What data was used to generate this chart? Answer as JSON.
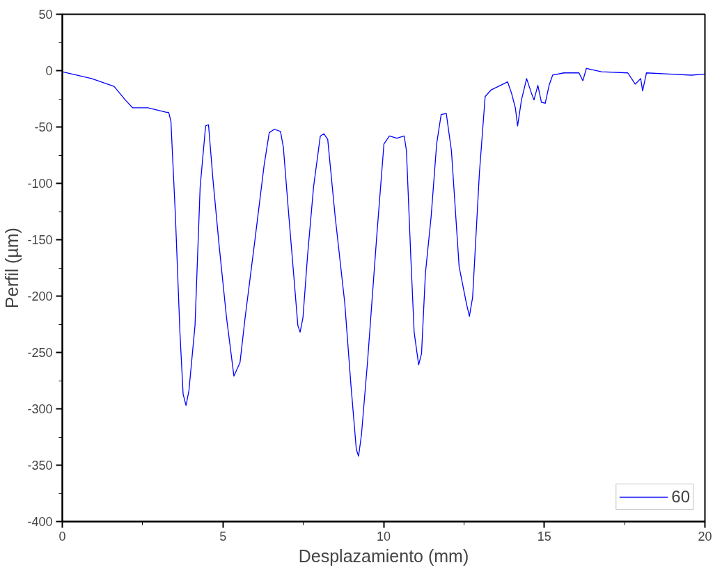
{
  "chart_data": {
    "type": "line",
    "xlabel": "Desplazamiento (mm)",
    "ylabel": "Perfil (µm)",
    "xlim": [
      0,
      20
    ],
    "ylim": [
      -400,
      50
    ],
    "xticks": [
      0,
      {
        "value": 2.5,
        "label": null
      },
      5,
      {
        "value": 7.5,
        "label": null
      },
      10,
      {
        "value": 12.5,
        "label": null
      },
      15,
      {
        "value": 17.5,
        "label": null
      },
      20
    ],
    "yticks": [
      -400,
      {
        "value": -375,
        "label": null
      },
      -350,
      {
        "value": -325,
        "label": null
      },
      -300,
      {
        "value": -275,
        "label": null
      },
      -250,
      {
        "value": -225,
        "label": null
      },
      -200,
      {
        "value": -175,
        "label": null
      },
      -150,
      {
        "value": -125,
        "label": null
      },
      -100,
      {
        "value": -75,
        "label": null
      },
      -50,
      {
        "value": -25,
        "label": null
      },
      0,
      {
        "value": 25,
        "label": null
      },
      50
    ],
    "grid": false,
    "legend": "bottom right",
    "marker": "none",
    "line_style": "solid",
    "series": [
      {
        "name": "60",
        "color": "#0000ff",
        "x": [
          0,
          0.91,
          1.61,
          1.96,
          2.19,
          2.66,
          3.24,
          3.31,
          3.38,
          3.52,
          3.66,
          3.76,
          3.85,
          3.94,
          4.13,
          4.29,
          4.46,
          4.55,
          4.69,
          4.88,
          5.11,
          5.27,
          5.34,
          5.53,
          5.69,
          6.0,
          6.28,
          6.44,
          6.6,
          6.79,
          6.88,
          7.05,
          7.21,
          7.33,
          7.4,
          7.49,
          7.63,
          7.82,
          8.03,
          8.14,
          8.26,
          8.49,
          8.79,
          8.98,
          9.15,
          9.22,
          9.31,
          9.5,
          9.78,
          10.01,
          10.18,
          10.41,
          10.64,
          10.71,
          10.85,
          10.95,
          11.09,
          11.18,
          11.3,
          11.48,
          11.65,
          11.79,
          11.95,
          12.11,
          12.35,
          12.58,
          12.67,
          12.77,
          12.98,
          13.16,
          13.35,
          13.86,
          13.98,
          14.1,
          14.17,
          14.29,
          14.45,
          14.6,
          14.68,
          14.8,
          14.91,
          15.03,
          15.15,
          15.26,
          15.61,
          16.08,
          16.2,
          16.31,
          16.78,
          17.6,
          17.83,
          18.0,
          18.06,
          18.18,
          18.88,
          19.58,
          20
        ],
        "values": [
          -1,
          -7,
          -14,
          -26,
          -33,
          -33,
          -37,
          -37,
          -45,
          -129,
          -232,
          -287,
          -297,
          -284,
          -226,
          -103,
          -49,
          -48,
          -97,
          -155,
          -219,
          -255,
          -271,
          -259,
          -219,
          -149,
          -84,
          -55,
          -52,
          -54,
          -68,
          -129,
          -184,
          -226,
          -232,
          -219,
          -165,
          -103,
          -58,
          -56,
          -61,
          -129,
          -206,
          -278,
          -336,
          -342,
          -323,
          -258,
          -149,
          -65,
          -58,
          -60,
          -58,
          -71,
          -168,
          -232,
          -261,
          -251,
          -180,
          -129,
          -65,
          -39,
          -38,
          -71,
          -174,
          -207,
          -218,
          -201,
          -91,
          -23,
          -17,
          -10,
          -20,
          -33,
          -49,
          -26,
          -7,
          -20,
          -26,
          -13,
          -28,
          -29,
          -13,
          -4,
          -2,
          -2,
          -9,
          2,
          -1,
          -2,
          -12,
          -7,
          -18,
          -2,
          -3,
          -4,
          -3
        ]
      }
    ]
  }
}
